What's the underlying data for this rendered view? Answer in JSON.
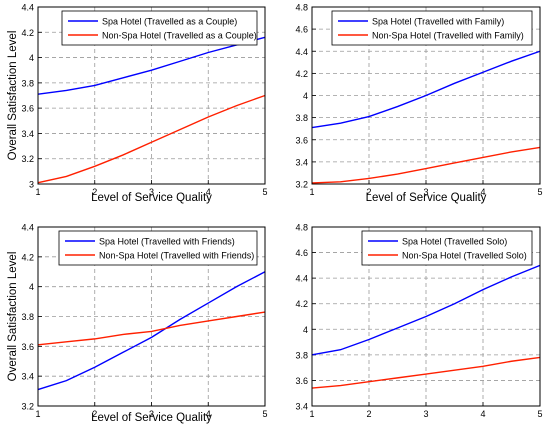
{
  "chart_data": [
    {
      "type": "line",
      "xlabel": "Level of Service Quality",
      "ylabel": "Overall Satisfaction Level",
      "xlim": [
        1,
        5
      ],
      "ylim": [
        3,
        4.4
      ],
      "xticks": [
        "1",
        "2",
        "3",
        "4",
        "5"
      ],
      "yticks": [
        "3",
        "3.2",
        "3.4",
        "3.6",
        "3.8",
        "4",
        "4.2",
        "4.4"
      ],
      "grid": true,
      "legend": "top-right",
      "x": [
        1,
        1.5,
        2,
        2.5,
        3,
        3.5,
        4,
        4.5,
        5
      ],
      "series": [
        {
          "name": "Spa Hotel (Travelled as a Couple)",
          "color": "#0000ff",
          "values": [
            3.71,
            3.74,
            3.78,
            3.84,
            3.9,
            3.97,
            4.04,
            4.1,
            4.16
          ]
        },
        {
          "name": "Non-Spa Hotel (Travelled as a Couple)",
          "color": "#ff2000",
          "values": [
            3.01,
            3.06,
            3.14,
            3.23,
            3.33,
            3.43,
            3.53,
            3.62,
            3.7
          ]
        }
      ]
    },
    {
      "type": "line",
      "xlabel": "Level of Service Quality",
      "ylabel": "",
      "xlim": [
        1,
        5
      ],
      "ylim": [
        3.2,
        4.8
      ],
      "xticks": [
        "1",
        "2",
        "3",
        "4",
        "5"
      ],
      "yticks": [
        "3.2",
        "3.4",
        "3.6",
        "3.8",
        "4",
        "4.2",
        "4.4",
        "4.6",
        "4.8"
      ],
      "grid": true,
      "legend": "top-right",
      "x": [
        1,
        1.5,
        2,
        2.5,
        3,
        3.5,
        4,
        4.5,
        5
      ],
      "series": [
        {
          "name": "Spa Hotel (Travelled with Family)",
          "color": "#0000ff",
          "values": [
            3.71,
            3.75,
            3.81,
            3.9,
            4.0,
            4.11,
            4.21,
            4.31,
            4.4
          ]
        },
        {
          "name": "Non-Spa Hotel (Travelled with Family)",
          "color": "#ff2000",
          "values": [
            3.21,
            3.22,
            3.25,
            3.29,
            3.34,
            3.39,
            3.44,
            3.49,
            3.53
          ]
        }
      ]
    },
    {
      "type": "line",
      "xlabel": "Level of Service Quality",
      "ylabel": "Overall Satisfaction Level",
      "xlim": [
        1,
        5
      ],
      "ylim": [
        3.2,
        4.4
      ],
      "xticks": [
        "1",
        "2",
        "3",
        "4",
        "5"
      ],
      "yticks": [
        "3.2",
        "3.4",
        "3.6",
        "3.8",
        "4",
        "4.2",
        "4.4"
      ],
      "grid": true,
      "legend": "top-right",
      "x": [
        1,
        1.5,
        2,
        2.5,
        3,
        3.5,
        4,
        4.5,
        5
      ],
      "series": [
        {
          "name": "Spa Hotel (Travelled with Friends)",
          "color": "#0000ff",
          "values": [
            3.31,
            3.37,
            3.46,
            3.56,
            3.66,
            3.78,
            3.89,
            4.0,
            4.1
          ]
        },
        {
          "name": "Non-Spa Hotel (Travelled with Friends)",
          "color": "#ff2000",
          "values": [
            3.61,
            3.63,
            3.65,
            3.68,
            3.7,
            3.74,
            3.77,
            3.8,
            3.83
          ]
        }
      ]
    },
    {
      "type": "line",
      "xlabel": "",
      "ylabel": "",
      "xlim": [
        1,
        5
      ],
      "ylim": [
        3.4,
        4.8
      ],
      "xticks": [
        "1",
        "2",
        "3",
        "4",
        "5"
      ],
      "yticks": [
        "3.4",
        "3.6",
        "3.8",
        "4",
        "4.2",
        "4.4",
        "4.6",
        "4.8"
      ],
      "grid": true,
      "legend": "top-right",
      "x": [
        1,
        1.5,
        2,
        2.5,
        3,
        3.5,
        4,
        4.5,
        5
      ],
      "series": [
        {
          "name": "Spa Hotel (Travelled Solo)",
          "color": "#0000ff",
          "values": [
            3.8,
            3.84,
            3.92,
            4.01,
            4.1,
            4.2,
            4.31,
            4.41,
            4.5
          ]
        },
        {
          "name": "Non-Spa Hotel (Travelled Solo)",
          "color": "#ff2000",
          "values": [
            3.54,
            3.56,
            3.59,
            3.62,
            3.65,
            3.68,
            3.71,
            3.75,
            3.78
          ]
        }
      ]
    }
  ]
}
